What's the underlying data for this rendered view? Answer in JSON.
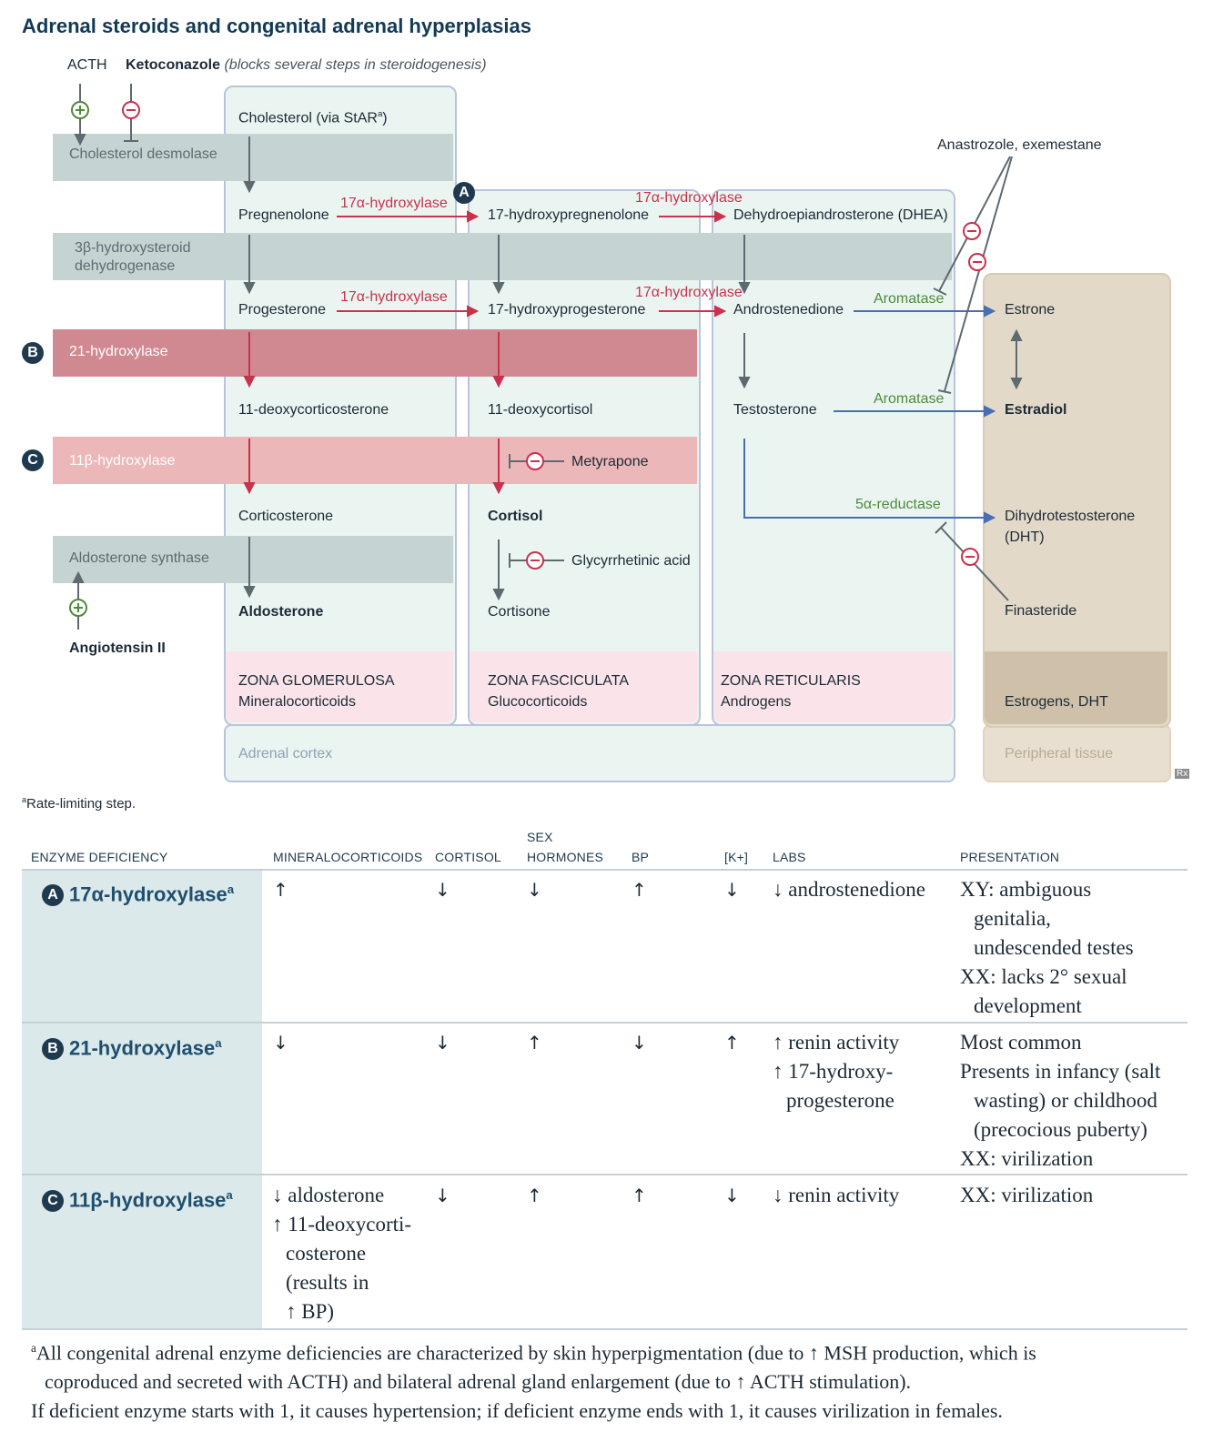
{
  "title": "Adrenal steroids and congenital adrenal hyperplasias",
  "regulators": {
    "acth": "ACTH",
    "ketoconazole": "Ketoconazole",
    "ketoconazole_note": "(blocks several steps in steroidogenesis)",
    "angiotensin": "Angiotensin II",
    "anastrozole": "Anastrozole, exemestane",
    "metyrapone": "Metyrapone",
    "glycyrrhetinic": "Glycyrrhetinic acid",
    "finasteride": "Finasteride"
  },
  "enzymes": {
    "desmolase": "Cholesterol desmolase",
    "hsd_line1": "3β-hydroxysteroid",
    "hsd_line2": "dehydrogenase",
    "hydroxylase21": "21-hydroxylase",
    "hydroxylase11": "11β-hydroxylase",
    "aldo_synthase": "Aldosterone synthase",
    "h17": "17α-hydroxylase",
    "aromatase": "Aromatase",
    "reductase": "5α-reductase"
  },
  "markers": {
    "a": "A",
    "b": "B",
    "c": "C"
  },
  "molecules": {
    "cholesterol": "Cholesterol (via StAR",
    "cholesterol_sup": "a",
    "cholesterol_end": ")",
    "pregnenolone": "Pregnenolone",
    "hydroxypregnenolone": "17-hydroxypregnenolone",
    "dhea": "Dehydroepiandrosterone (DHEA)",
    "progesterone": "Progesterone",
    "hydroxyprogesterone": "17-hydroxyprogesterone",
    "androstenedione": "Androstenedione",
    "estrone": "Estrone",
    "deoxycorticosterone": "11-deoxycorticosterone",
    "deoxycortisol": "11-deoxycortisol",
    "testosterone": "Testosterone",
    "estradiol": "Estradiol",
    "corticosterone": "Corticosterone",
    "cortisol": "Cortisol",
    "dht_line1": "Dihydrotestosterone",
    "dht_line2": "(DHT)",
    "aldosterone": "Aldosterone",
    "cortisone": "Cortisone"
  },
  "zones": {
    "glomerulosa": "ZONA GLOMERULOSA",
    "glomerulosa_sub": "Mineralocorticoids",
    "fasciculata": "ZONA FASCICULATA",
    "fasciculata_sub": "Glucocorticoids",
    "reticularis": "ZONA RETICULARIS",
    "reticularis_sub": "Androgens",
    "peripheral": "Estrogens, DHT"
  },
  "regions": {
    "cortex": "Adrenal cortex",
    "peripheral": "Peripheral tissue"
  },
  "rx": "Rx",
  "footnote_a": "Rate-limiting step.",
  "footnote_a_sup": "a",
  "table": {
    "headers": {
      "enzyme": "ENZYME DEFICIENCY",
      "mineralo": "MINERALOCORTICOIDS",
      "cortisol": "CORTISOL",
      "sex1": "SEX",
      "sex2": "HORMONES",
      "bp": "BP",
      "k": "[K+]",
      "labs": "LABS",
      "presentation": "PRESENTATION"
    },
    "rows": [
      {
        "letter": "A",
        "name": "17α-hydroxylase",
        "sup": "a",
        "mineralo": "↑",
        "cortisol": "↓",
        "sex": "↓",
        "bp": "↑",
        "k": "↓",
        "labs": [
          "↓ androstenedione"
        ],
        "presentation": [
          "XY: ambiguous",
          "genitalia,",
          "undescended testes",
          "XX: lacks 2° sexual",
          "development"
        ]
      },
      {
        "letter": "B",
        "name": "21-hydroxylase",
        "sup": "a",
        "mineralo": "↓",
        "cortisol": "↓",
        "sex": "↑",
        "bp": "↓",
        "k": "↑",
        "labs": [
          "↑ renin activity",
          "↑ 17-hydroxy-",
          "progesterone"
        ],
        "presentation": [
          "Most common",
          "Presents in infancy (salt",
          "wasting) or childhood",
          "(precocious puberty)",
          "XX: virilization"
        ]
      },
      {
        "letter": "C",
        "name": "11β-hydroxylase",
        "sup": "a",
        "mineralo_lines": [
          "↓ aldosterone",
          "↑ 11-deoxycorti-",
          "costerone",
          "(results in",
          "↑ BP)"
        ],
        "cortisol": "↓",
        "sex": "↑",
        "bp": "↑",
        "k": "↓",
        "labs": [
          "↓ renin activity"
        ],
        "presentation": [
          "XX: virilization"
        ]
      }
    ]
  },
  "notes": {
    "sup": "a",
    "line1": "All congenital adrenal enzyme deficiencies are characterized by skin hyperpigmentation (due to ↑ MSH production, which is",
    "line2": "coproduced and secreted with ACTH) and bilateral adrenal gland enlargement (due to ↑ ACTH stimulation).",
    "line3": "If deficient enzyme starts with 1, it causes hypertension; if deficient enzyme ends with 1, it causes virilization in females."
  }
}
